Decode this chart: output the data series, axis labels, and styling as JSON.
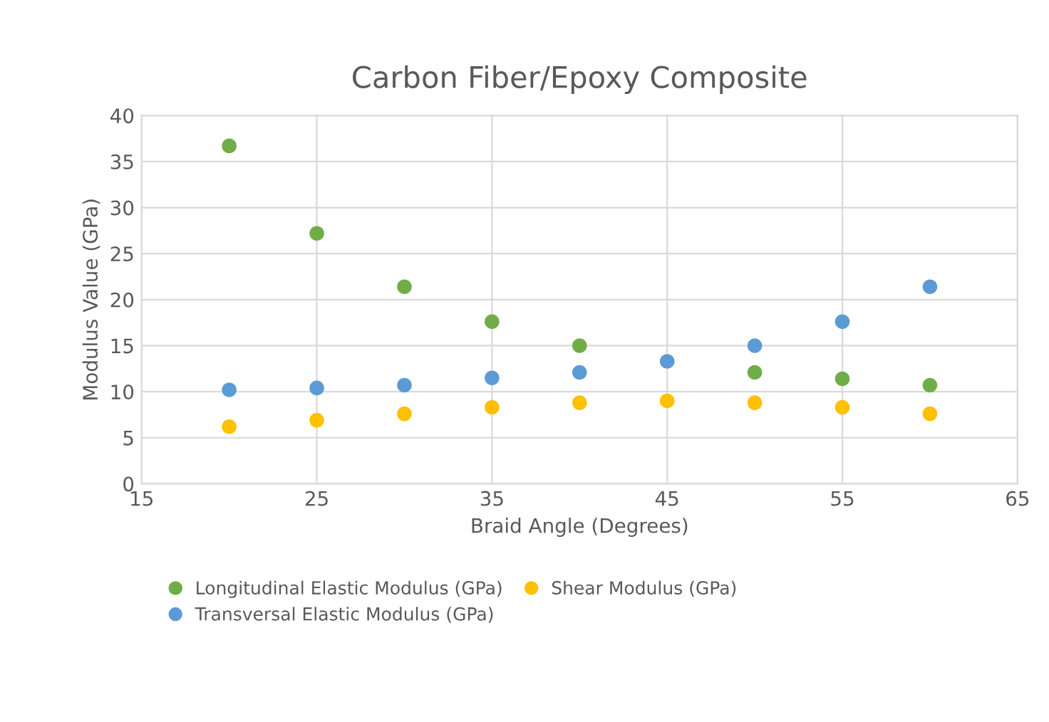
{
  "chart_data": {
    "type": "scatter",
    "title": "Carbon Fiber/Epoxy Composite",
    "xlabel": "Braid Angle (Degrees)",
    "ylabel": "Modulus Value (GPa)",
    "x": [
      20,
      25,
      30,
      35,
      40,
      45,
      50,
      55,
      60
    ],
    "series": [
      {
        "name": "Longitudinal Elastic Modulus (GPa)",
        "color": "#70ad47",
        "values": [
          36.7,
          27.2,
          21.4,
          17.6,
          15.0,
          null,
          12.1,
          11.4,
          10.7
        ]
      },
      {
        "name": "Transversal Elastic Modulus (GPa)",
        "color": "#5b9bd5",
        "values": [
          10.2,
          10.4,
          10.7,
          11.5,
          12.1,
          13.3,
          15.0,
          17.6,
          21.4
        ]
      },
      {
        "name": "Shear Modulus (GPa)",
        "color": "#ffc000",
        "values": [
          6.2,
          6.9,
          7.6,
          8.3,
          8.8,
          9.0,
          8.8,
          8.3,
          7.6
        ]
      }
    ],
    "xlim": [
      15,
      65
    ],
    "xticks": [
      15,
      25,
      35,
      45,
      55,
      65
    ],
    "ylim": [
      0,
      40
    ],
    "yticks": [
      0,
      5,
      10,
      15,
      20,
      25,
      30,
      35,
      40
    ],
    "grid": true,
    "legend": "bottom",
    "marker": "circle"
  }
}
